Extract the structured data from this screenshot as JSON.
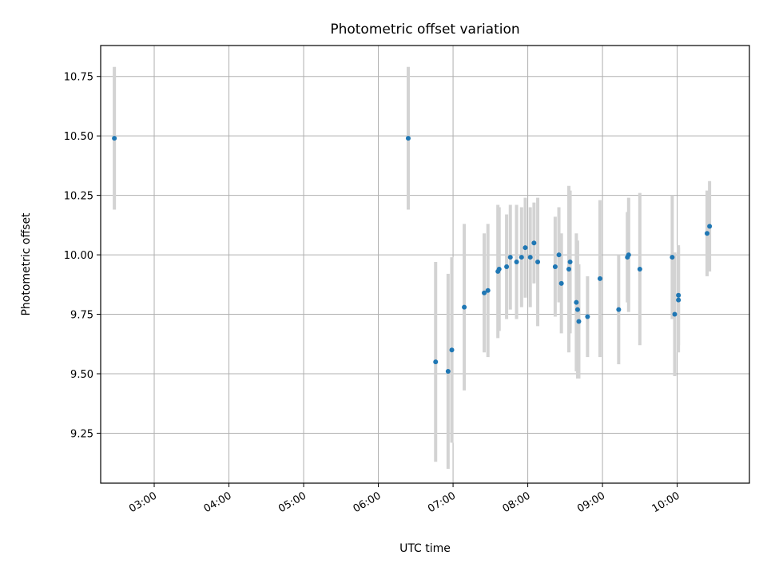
{
  "chart_data": {
    "type": "scatter",
    "title": "Photometric offset variation",
    "xlabel": "UTC time",
    "ylabel": "Photometric offset",
    "x_axis_type": "time",
    "xlim": [
      "02:17",
      "10:58"
    ],
    "ylim": [
      9.04,
      10.88
    ],
    "grid": true,
    "x_ticks": [
      "03:00",
      "04:00",
      "05:00",
      "06:00",
      "07:00",
      "08:00",
      "09:00",
      "10:00"
    ],
    "y_ticks": [
      "9.25",
      "9.50",
      "9.75",
      "10.00",
      "10.25",
      "10.50",
      "10.75"
    ],
    "marker_color": "#1f77b4",
    "errorbar_color": "#d3d3d3",
    "points": [
      {
        "x": "02:28",
        "y": 10.49,
        "err": 0.3
      },
      {
        "x": "06:24",
        "y": 10.49,
        "err": 0.3
      },
      {
        "x": "06:46",
        "y": 9.55,
        "err": 0.42
      },
      {
        "x": "06:56",
        "y": 9.51,
        "err": 0.41
      },
      {
        "x": "06:59",
        "y": 9.6,
        "err": 0.39
      },
      {
        "x": "07:09",
        "y": 9.78,
        "err": 0.35
      },
      {
        "x": "07:25",
        "y": 9.84,
        "err": 0.25
      },
      {
        "x": "07:28",
        "y": 9.85,
        "err": 0.28
      },
      {
        "x": "07:36",
        "y": 9.93,
        "err": 0.28
      },
      {
        "x": "07:37",
        "y": 9.94,
        "err": 0.26
      },
      {
        "x": "07:43",
        "y": 9.95,
        "err": 0.22
      },
      {
        "x": "07:46",
        "y": 9.99,
        "err": 0.22
      },
      {
        "x": "07:51",
        "y": 9.97,
        "err": 0.24
      },
      {
        "x": "07:55",
        "y": 9.99,
        "err": 0.21
      },
      {
        "x": "07:58",
        "y": 10.03,
        "err": 0.21
      },
      {
        "x": "08:02",
        "y": 9.99,
        "err": 0.21
      },
      {
        "x": "08:05",
        "y": 10.05,
        "err": 0.17
      },
      {
        "x": "08:08",
        "y": 9.97,
        "err": 0.27
      },
      {
        "x": "08:22",
        "y": 9.95,
        "err": 0.21
      },
      {
        "x": "08:25",
        "y": 10.0,
        "err": 0.2
      },
      {
        "x": "08:27",
        "y": 9.88,
        "err": 0.21
      },
      {
        "x": "08:33",
        "y": 9.94,
        "err": 0.35
      },
      {
        "x": "08:34",
        "y": 9.97,
        "err": 0.3
      },
      {
        "x": "08:39",
        "y": 9.8,
        "err": 0.29
      },
      {
        "x": "08:40",
        "y": 9.77,
        "err": 0.29
      },
      {
        "x": "08:41",
        "y": 9.72,
        "err": 0.24
      },
      {
        "x": "08:48",
        "y": 9.74,
        "err": 0.17
      },
      {
        "x": "08:58",
        "y": 9.9,
        "err": 0.33
      },
      {
        "x": "09:13",
        "y": 9.77,
        "err": 0.23
      },
      {
        "x": "09:20",
        "y": 9.99,
        "err": 0.19
      },
      {
        "x": "09:21",
        "y": 10.0,
        "err": 0.24
      },
      {
        "x": "09:30",
        "y": 9.94,
        "err": 0.32
      },
      {
        "x": "09:56",
        "y": 9.99,
        "err": 0.26
      },
      {
        "x": "09:58",
        "y": 9.75,
        "err": 0.26
      },
      {
        "x": "10:01",
        "y": 9.83,
        "err": 0.21
      },
      {
        "x": "10:01",
        "y": 9.81,
        "err": 0.22
      },
      {
        "x": "10:24",
        "y": 10.09,
        "err": 0.18
      },
      {
        "x": "10:26",
        "y": 10.12,
        "err": 0.19
      }
    ]
  }
}
